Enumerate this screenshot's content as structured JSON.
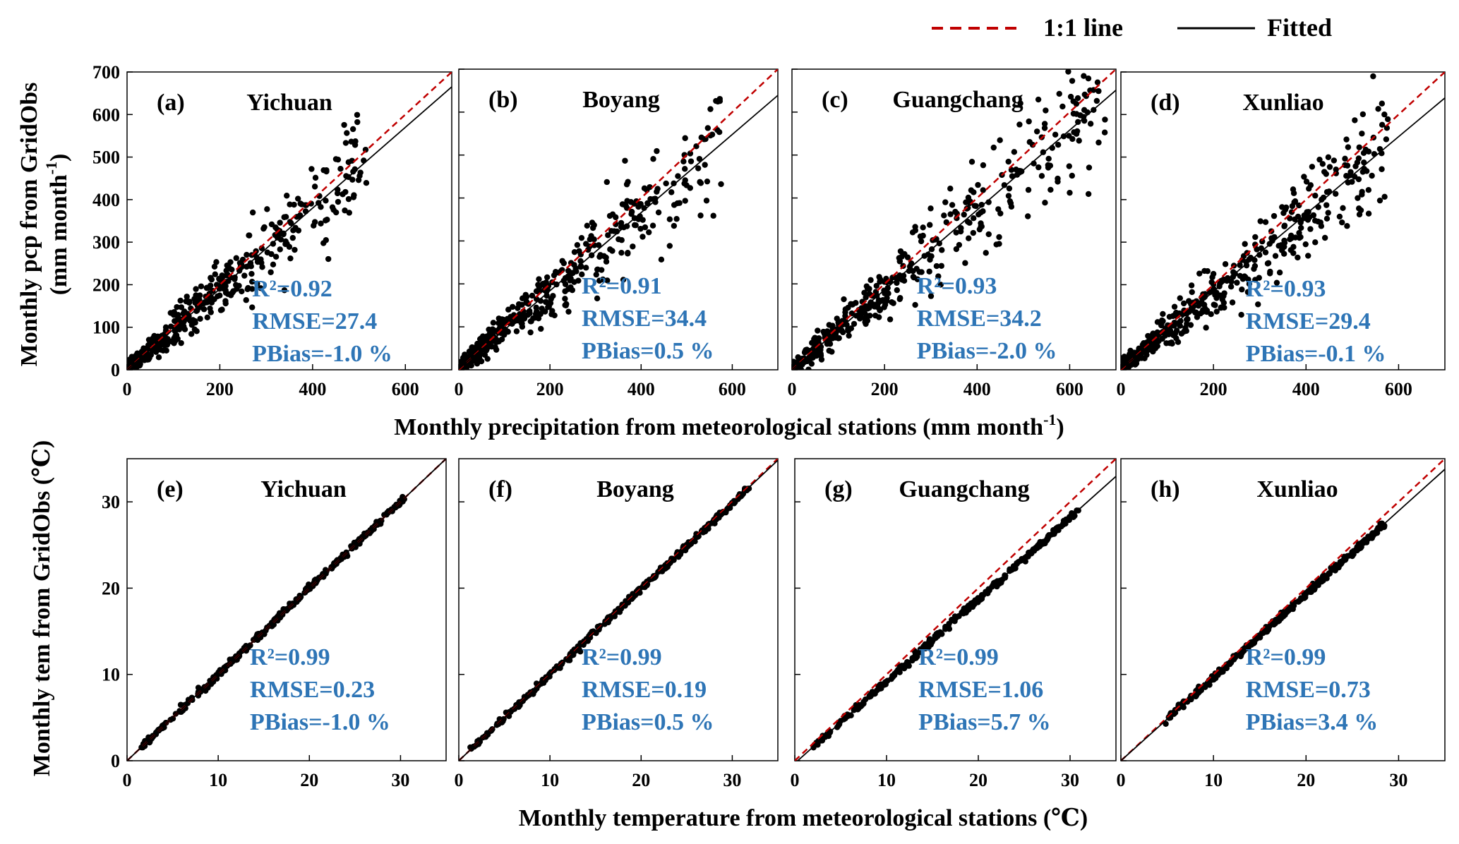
{
  "legend": {
    "items": [
      {
        "label": "1:1 line",
        "style": "dashed",
        "color": "#c00000"
      },
      {
        "label": "Fitted",
        "style": "solid",
        "color": "#000000"
      }
    ]
  },
  "rows": [
    {
      "ylabel_main": "Monthly pcp from GridObs",
      "ylabel_unit": "(mm month",
      "ylabel_unit_sup": "-1",
      "ylabel_unit_end": ")",
      "xlabel_main": "Monthly precipitation from meteorological stations (mm month",
      "xlabel_sup": "-1",
      "xlabel_end": ")"
    },
    {
      "ylabel_main": "Monthly tem from GridObs (℃)",
      "xlabel_main": "Monthly temperature from meteorological stations (℃)"
    }
  ],
  "chart_data": [
    {
      "type": "scatter",
      "tag": "(a)",
      "title": "Yichuan",
      "xlim": [
        0,
        700
      ],
      "ylim": [
        0,
        700
      ],
      "xticks": [
        0,
        200,
        400,
        600
      ],
      "yticks": [
        0,
        100,
        200,
        300,
        400,
        500,
        600,
        700
      ],
      "fit": {
        "slope": 0.95,
        "intercept": 0
      },
      "max_x": 520,
      "stats": {
        "r2": "R²=0.92",
        "rmse": "RMSE=27.4",
        "pbias": "PBias=-1.0 %"
      }
    },
    {
      "type": "scatter",
      "tag": "(b)",
      "title": "Boyang",
      "xlim": [
        0,
        700
      ],
      "ylim": [
        0,
        700
      ],
      "xticks": [
        0,
        200,
        400,
        600
      ],
      "yticks": [
        0,
        100,
        200,
        300,
        400,
        500,
        600,
        700
      ],
      "fit": {
        "slope": 0.91,
        "intercept": 2
      },
      "max_x": 580,
      "stats": {
        "r2": "R²=0.91",
        "rmse": "RMSE=34.4",
        "pbias": "PBias=0.5 %"
      }
    },
    {
      "type": "scatter",
      "tag": "(c)",
      "title": "Guangchang",
      "xlim": [
        0,
        700
      ],
      "ylim": [
        0,
        700
      ],
      "xticks": [
        0,
        200,
        400,
        600
      ],
      "yticks": [
        0,
        100,
        200,
        300,
        400,
        500,
        600,
        700
      ],
      "fit": {
        "slope": 0.93,
        "intercept": 0
      },
      "max_x": 690,
      "stats": {
        "r2": "R²=0.93",
        "rmse": "RMSE=34.2",
        "pbias": "PBias=-2.0 %"
      }
    },
    {
      "type": "scatter",
      "tag": "(d)",
      "title": "Xunliao",
      "xlim": [
        0,
        700
      ],
      "ylim": [
        0,
        700
      ],
      "xticks": [
        0,
        200,
        400,
        600
      ],
      "yticks": [
        0,
        100,
        200,
        300,
        400,
        500,
        600,
        700
      ],
      "fit": {
        "slope": 0.91,
        "intercept": 2
      },
      "max_x": 580,
      "stats": {
        "r2": "R²=0.93",
        "rmse": "RMSE=29.4",
        "pbias": "PBias=-0.1 %"
      }
    },
    {
      "type": "scatter",
      "tag": "(e)",
      "title": "Yichuan",
      "xlim": [
        0,
        35
      ],
      "ylim": [
        0,
        35
      ],
      "xticks": [
        0,
        10,
        20,
        30
      ],
      "yticks": [
        0,
        10,
        20,
        30
      ],
      "fit": {
        "slope": 1.0,
        "intercept": 0
      },
      "min_x": 1.5,
      "max_x": 30.5,
      "stats": {
        "r2": "R²=0.99",
        "rmse": "RMSE=0.23",
        "pbias": "PBias=-1.0 %"
      }
    },
    {
      "type": "scatter",
      "tag": "(f)",
      "title": "Boyang",
      "xlim": [
        0,
        35
      ],
      "ylim": [
        0,
        35
      ],
      "xticks": [
        0,
        10,
        20,
        30
      ],
      "yticks": [
        0,
        10,
        20,
        30
      ],
      "fit": {
        "slope": 0.995,
        "intercept": 0
      },
      "min_x": 1.2,
      "max_x": 32,
      "stats": {
        "r2": "R²=0.99",
        "rmse": "RMSE=0.19",
        "pbias": "PBias=0.5 %"
      }
    },
    {
      "type": "scatter",
      "tag": "(g)",
      "title": "Guangchang",
      "xlim": [
        0,
        35
      ],
      "ylim": [
        0,
        35
      ],
      "xticks": [
        0,
        10,
        20,
        30
      ],
      "yticks": [
        0,
        10,
        20,
        30
      ],
      "fit": {
        "slope": 0.95,
        "intercept": -0.3
      },
      "min_x": 2,
      "max_x": 31,
      "stats": {
        "r2": "R²=0.99",
        "rmse": "RMSE=1.06",
        "pbias": "PBias=5.7 %"
      }
    },
    {
      "type": "scatter",
      "tag": "(h)",
      "title": "Xunliao",
      "xlim": [
        0,
        35
      ],
      "ylim": [
        0,
        35
      ],
      "xticks": [
        0,
        10,
        20,
        30
      ],
      "yticks": [
        0,
        10,
        20,
        30
      ],
      "fit": {
        "slope": 0.965,
        "intercept": 0
      },
      "min_x": 4.8,
      "max_x": 28.5,
      "stats": {
        "r2": "R²=0.99",
        "rmse": "RMSE=0.73",
        "pbias": "PBias=3.4 %"
      }
    }
  ]
}
